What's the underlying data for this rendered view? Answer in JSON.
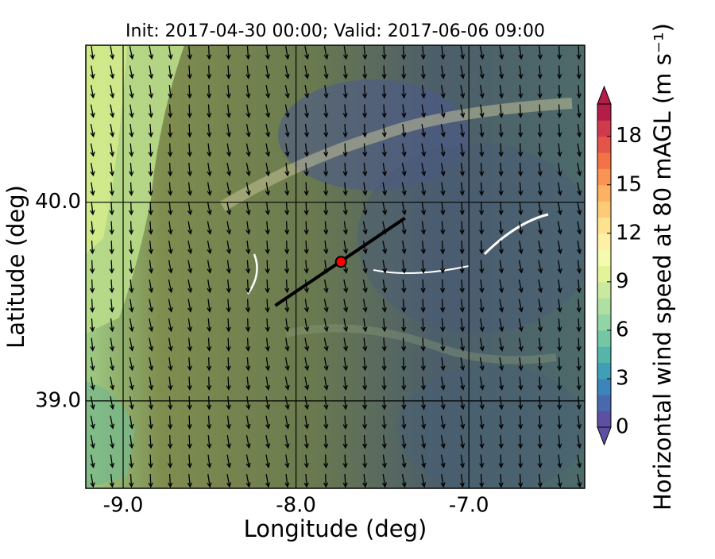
{
  "chart_data": {
    "type": "map",
    "title": "Init: 2017-04-30 00:00; Valid: 2017-06-06 09:00",
    "xlabel": "Longitude (deg)",
    "ylabel": "Latitude (deg)",
    "xlim": [
      -9.216,
      -6.33
    ],
    "ylim": [
      38.56,
      40.79
    ],
    "xticks": [
      {
        "value": -9,
        "label": "-9.0"
      },
      {
        "value": -8,
        "label": "-8.0"
      },
      {
        "value": -7,
        "label": "-7.0"
      }
    ],
    "yticks": [
      {
        "value": 39,
        "label": "39.0"
      },
      {
        "value": 40,
        "label": "40.0"
      }
    ],
    "grid": true,
    "point": {
      "lon": -7.74,
      "lat": 39.7,
      "color": "#ff0000"
    },
    "transect": {
      "lon": [
        -8.12,
        -7.37
      ],
      "lat": [
        39.48,
        39.92
      ],
      "color": "#000000"
    },
    "colorbar": {
      "label": "Horizontal wind speed at 80 mAGL (m s⁻¹)",
      "lim": [
        0,
        20
      ],
      "ticks": [
        0,
        3,
        6,
        9,
        12,
        15,
        18
      ],
      "colors": [
        "#5e4fa2",
        "#4a68ad",
        "#3c85bb",
        "#3f9fb6",
        "#56b5aa",
        "#74c7a5",
        "#93d4a4",
        "#b0df a2",
        "#cbe99e",
        "#e3f398",
        "#f5faae",
        "#fff0a6",
        "#fee28f",
        "#fdcb77",
        "#fdb163",
        "#f99453",
        "#f27446",
        "#e35549",
        "#cf3a4c",
        "#b31d48"
      ]
    }
  }
}
